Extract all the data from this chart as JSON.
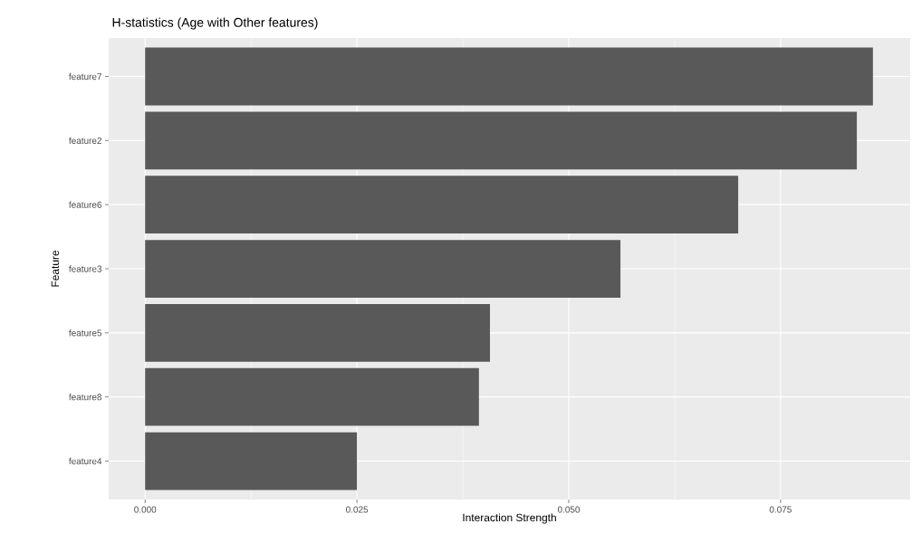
{
  "chart_data": {
    "type": "bar",
    "orientation": "horizontal",
    "title": "H-statistics (Age with Other features)",
    "xlabel": "Interaction Strength",
    "ylabel": "Feature",
    "categories": [
      "feature7",
      "feature2",
      "feature6",
      "feature3",
      "feature5",
      "feature8",
      "feature4"
    ],
    "values": [
      0.0859,
      0.084,
      0.07,
      0.0561,
      0.0407,
      0.0394,
      0.025
    ],
    "color": "#595959",
    "xlim": [
      -0.0043,
      0.0903
    ],
    "xticks": [
      {
        "value": 0,
        "label": "0.000"
      },
      {
        "value": 0.025,
        "label": "0.025"
      },
      {
        "value": 0.05,
        "label": "0.050"
      },
      {
        "value": 0.075,
        "label": "0.075"
      }
    ],
    "grid": true
  }
}
